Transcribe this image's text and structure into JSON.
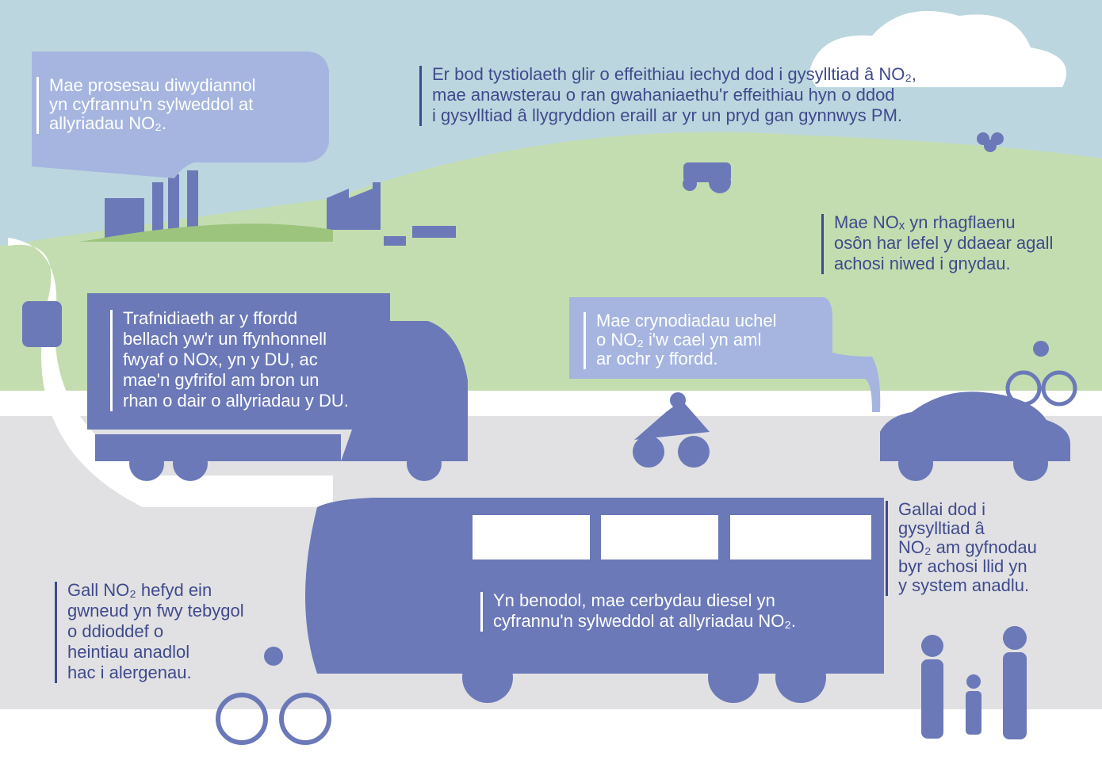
{
  "callouts": [
    {
      "lines": [
        "Mae prosesau diwydiannol",
        "yn cyfrannu'n sylweddol at",
        "allyriadau NO₂."
      ]
    },
    {
      "lines": [
        "Er bod tystiolaeth glir o effeithiau iechyd dod i gysylltiad â NO₂,",
        "mae anawsterau o ran gwahaniaethu'r effeithiau hyn o ddod",
        "i gysylltiad â llygryddion eraill ar yr un pryd gan gynnwys PM."
      ]
    },
    {
      "lines": [
        "Mae NOₓ yn rhagflaenu",
        "osôn har lefel y ddaear agall",
        "achosi niwed i gnydau."
      ]
    },
    {
      "lines": [
        "Trafnidiaeth ar y ffordd",
        "bellach yw'r un ffynhonnell",
        "fwyaf o NOx, yn y DU, ac",
        "mae'n gyfrifol am bron un",
        "rhan o dair o allyriadau y DU."
      ]
    },
    {
      "lines": [
        "Mae crynodiadau uchel",
        "o NO₂ i'w cael yn aml",
        "ar ochr y ffordd."
      ]
    },
    {
      "lines": [
        "Gallai dod i",
        "gysylltiad â",
        "NO₂ am gyfnodau",
        "byr achosi llid yn",
        "y system anadlu."
      ]
    },
    {
      "lines": [
        "Gall NO₂ hefyd ein",
        "gwneud yn fwy tebygol",
        "o ddioddef o",
        "heintiau anadlol",
        "hac i alergenau."
      ]
    },
    {
      "lines": [
        "Yn benodol, mae cerbydau diesel yn",
        "cyfrannu'n sylweddol at allyriadau NO₂."
      ]
    }
  ]
}
